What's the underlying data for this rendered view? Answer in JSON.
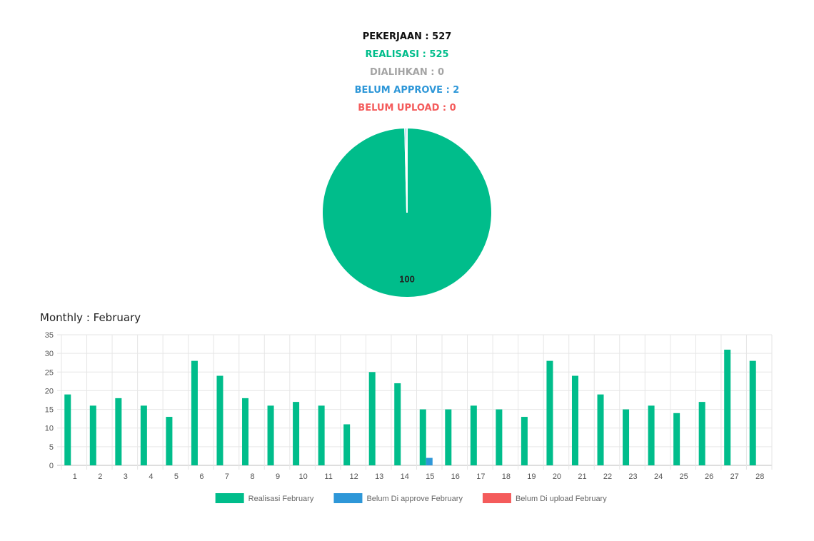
{
  "stats": [
    {
      "label": "PEKERJAAN : 527",
      "color": "#111111"
    },
    {
      "label": "REALISASI : 525",
      "color": "#00bd8b"
    },
    {
      "label": "DIALIHKAN : 0",
      "color": "#a5a5a5"
    },
    {
      "label": "BELUM APPROVE : 2",
      "color": "#2e97d8"
    },
    {
      "label": "BELUM UPLOAD : 0",
      "color": "#f45b5b"
    }
  ],
  "chart_data": [
    {
      "type": "pie",
      "slices": [
        {
          "value": 525,
          "color": "#00bd8b"
        },
        {
          "value": 2,
          "color": "#2e97d8"
        }
      ],
      "data_label": "100"
    },
    {
      "type": "bar",
      "title": "Monthly : February",
      "categories": [
        "1",
        "2",
        "3",
        "4",
        "5",
        "6",
        "7",
        "8",
        "9",
        "10",
        "11",
        "12",
        "13",
        "14",
        "15",
        "16",
        "17",
        "18",
        "19",
        "20",
        "21",
        "22",
        "23",
        "24",
        "25",
        "26",
        "27",
        "28"
      ],
      "series": [
        {
          "name": "Realisasi February",
          "color": "#00bd8b",
          "values": [
            19,
            16,
            18,
            16,
            13,
            28,
            24,
            18,
            16,
            17,
            16,
            11,
            25,
            22,
            15,
            15,
            16,
            15,
            13,
            28,
            24,
            19,
            15,
            16,
            14,
            17,
            31,
            28
          ]
        },
        {
          "name": "Belum Di approve February",
          "color": "#2e97d8",
          "values": [
            0,
            0,
            0,
            0,
            0,
            0,
            0,
            0,
            0,
            0,
            0,
            0,
            0,
            0,
            2,
            0,
            0,
            0,
            0,
            0,
            0,
            0,
            0,
            0,
            0,
            0,
            0,
            0
          ]
        },
        {
          "name": "Belum Di upload February",
          "color": "#f45b5b",
          "values": [
            0,
            0,
            0,
            0,
            0,
            0,
            0,
            0,
            0,
            0,
            0,
            0,
            0,
            0,
            0,
            0,
            0,
            0,
            0,
            0,
            0,
            0,
            0,
            0,
            0,
            0,
            0,
            0
          ]
        }
      ],
      "ylim": [
        0,
        35
      ],
      "yticks": [
        0,
        5,
        10,
        15,
        20,
        25,
        30,
        35
      ],
      "grid": true,
      "legend": "bottom"
    }
  ]
}
